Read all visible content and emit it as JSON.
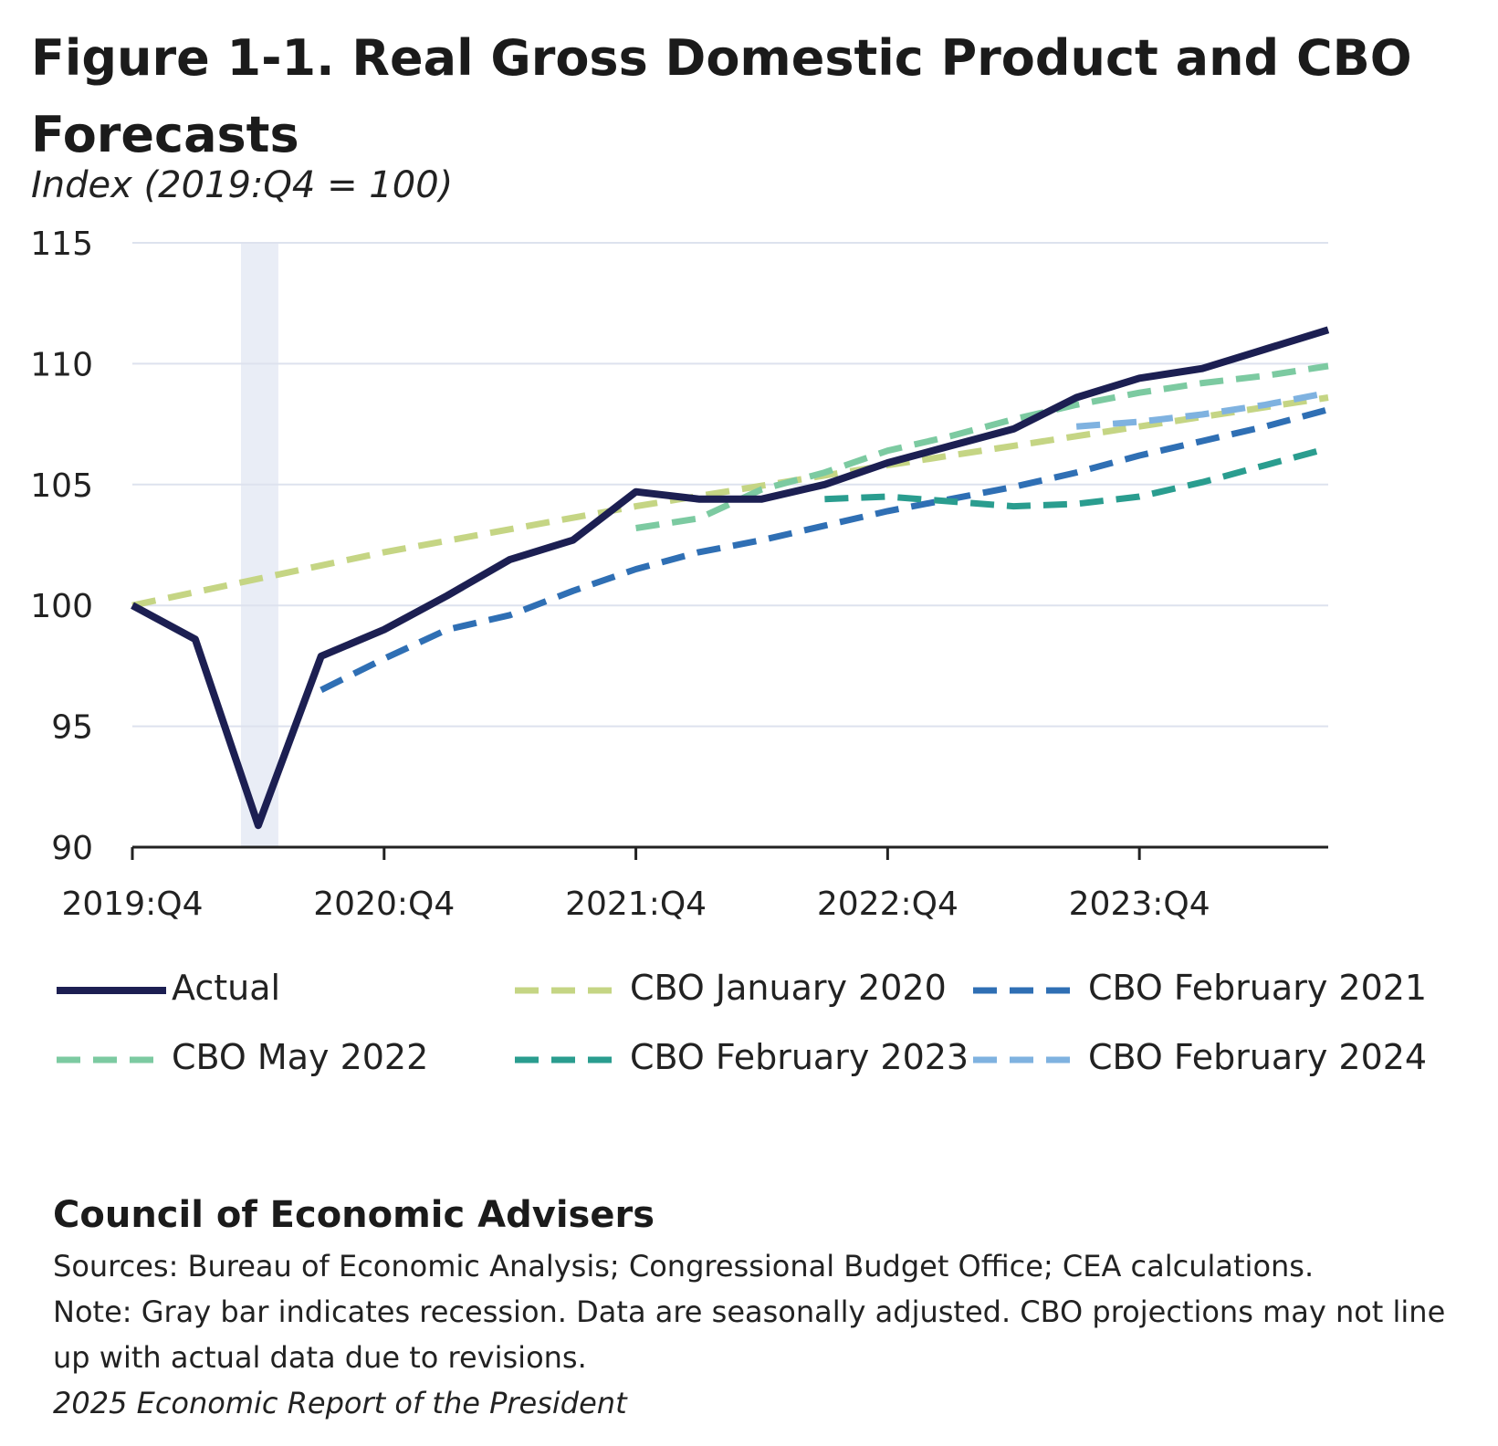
{
  "title": "Figure 1-1. Real Gross Domestic Product and CBO Forecasts",
  "subtitle": "Index (2019:Q4 = 100)",
  "footer": {
    "org": "Council of Economic Advisers",
    "sources": "Sources: Bureau of Economic Analysis; Congressional Budget Office; CEA calculations.",
    "note": "Note: Gray bar indicates recession. Data are seasonally adjusted. CBO projections may not line up with actual data due to revisions.",
    "report": "2025 Economic Report of the President"
  },
  "chart_data": {
    "type": "line",
    "ylim": [
      90,
      115
    ],
    "yticks": [
      90,
      95,
      100,
      105,
      110,
      115
    ],
    "x_range": [
      "2019:Q4",
      "2024:Q3"
    ],
    "quarters": [
      "2019:Q4",
      "2020:Q1",
      "2020:Q2",
      "2020:Q3",
      "2020:Q4",
      "2021:Q1",
      "2021:Q2",
      "2021:Q3",
      "2021:Q4",
      "2022:Q1",
      "2022:Q2",
      "2022:Q3",
      "2022:Q4",
      "2023:Q1",
      "2023:Q2",
      "2023:Q3",
      "2023:Q4",
      "2024:Q1",
      "2024:Q2",
      "2024:Q3"
    ],
    "xtick_labels": [
      "2019:Q4",
      "2020:Q4",
      "2021:Q4",
      "2022:Q4",
      "2023:Q4"
    ],
    "grid": true,
    "recession": {
      "start": "2020:Q1",
      "end": "2020:Q2"
    },
    "series": [
      {
        "name": "CBO January 2020",
        "color": "#c5d584",
        "style": "dashed",
        "points": [
          [
            "2019:Q4",
            100.0
          ],
          [
            "2020:Q4",
            102.2
          ],
          [
            "2021:Q4",
            104.1
          ],
          [
            "2022:Q4",
            105.8
          ],
          [
            "2023:Q4",
            107.4
          ],
          [
            "2024:Q3",
            108.6
          ]
        ]
      },
      {
        "name": "CBO February 2021",
        "color": "#2f6fb4",
        "style": "dashed",
        "points": [
          [
            "2020:Q3",
            96.5
          ],
          [
            "2020:Q4",
            97.8
          ],
          [
            "2021:Q1",
            99.0
          ],
          [
            "2021:Q2",
            99.6
          ],
          [
            "2021:Q3",
            100.6
          ],
          [
            "2021:Q4",
            101.5
          ],
          [
            "2022:Q1",
            102.2
          ],
          [
            "2022:Q2",
            102.7
          ],
          [
            "2022:Q3",
            103.3
          ],
          [
            "2022:Q4",
            103.9
          ],
          [
            "2023:Q1",
            104.4
          ],
          [
            "2023:Q2",
            104.9
          ],
          [
            "2023:Q3",
            105.5
          ],
          [
            "2023:Q4",
            106.2
          ],
          [
            "2024:Q1",
            106.8
          ],
          [
            "2024:Q2",
            107.4
          ],
          [
            "2024:Q3",
            108.1
          ]
        ]
      },
      {
        "name": "CBO May 2022",
        "color": "#7ccaa1",
        "style": "dashed",
        "points": [
          [
            "2021:Q4",
            103.2
          ],
          [
            "2022:Q1",
            103.6
          ],
          [
            "2022:Q2",
            104.8
          ],
          [
            "2022:Q3",
            105.5
          ],
          [
            "2022:Q4",
            106.4
          ],
          [
            "2023:Q1",
            107.0
          ],
          [
            "2023:Q2",
            107.7
          ],
          [
            "2023:Q3",
            108.3
          ],
          [
            "2023:Q4",
            108.8
          ],
          [
            "2024:Q1",
            109.2
          ],
          [
            "2024:Q2",
            109.5
          ],
          [
            "2024:Q3",
            109.9
          ]
        ]
      },
      {
        "name": "CBO February 2023",
        "color": "#2a9d8f",
        "style": "dashed",
        "points": [
          [
            "2022:Q3",
            104.4
          ],
          [
            "2022:Q4",
            104.5
          ],
          [
            "2023:Q1",
            104.3
          ],
          [
            "2023:Q2",
            104.1
          ],
          [
            "2023:Q3",
            104.2
          ],
          [
            "2023:Q4",
            104.5
          ],
          [
            "2024:Q1",
            105.1
          ],
          [
            "2024:Q2",
            105.8
          ],
          [
            "2024:Q3",
            106.5
          ]
        ]
      },
      {
        "name": "CBO February 2024",
        "color": "#7fb2e0",
        "style": "dashed",
        "points": [
          [
            "2023:Q3",
            107.4
          ],
          [
            "2023:Q4",
            107.6
          ],
          [
            "2024:Q1",
            107.9
          ],
          [
            "2024:Q2",
            108.3
          ],
          [
            "2024:Q3",
            108.8
          ]
        ]
      },
      {
        "name": "Actual",
        "color": "#1c1f52",
        "style": "solid",
        "points": [
          [
            "2019:Q4",
            100.0
          ],
          [
            "2020:Q1",
            98.6
          ],
          [
            "2020:Q2",
            90.9
          ],
          [
            "2020:Q3",
            97.9
          ],
          [
            "2020:Q4",
            99.0
          ],
          [
            "2021:Q1",
            100.4
          ],
          [
            "2021:Q2",
            101.9
          ],
          [
            "2021:Q3",
            102.7
          ],
          [
            "2021:Q4",
            104.7
          ],
          [
            "2022:Q1",
            104.4
          ],
          [
            "2022:Q2",
            104.4
          ],
          [
            "2022:Q3",
            105.0
          ],
          [
            "2022:Q4",
            105.9
          ],
          [
            "2023:Q1",
            106.6
          ],
          [
            "2023:Q2",
            107.3
          ],
          [
            "2023:Q3",
            108.6
          ],
          [
            "2023:Q4",
            109.4
          ],
          [
            "2024:Q1",
            109.8
          ],
          [
            "2024:Q2",
            110.6
          ],
          [
            "2024:Q3",
            111.4
          ]
        ]
      }
    ],
    "legend": {
      "placement": "bottom",
      "order": [
        "Actual",
        "CBO January 2020",
        "CBO February 2021",
        "CBO May 2022",
        "CBO February 2023",
        "CBO February 2024"
      ]
    }
  }
}
